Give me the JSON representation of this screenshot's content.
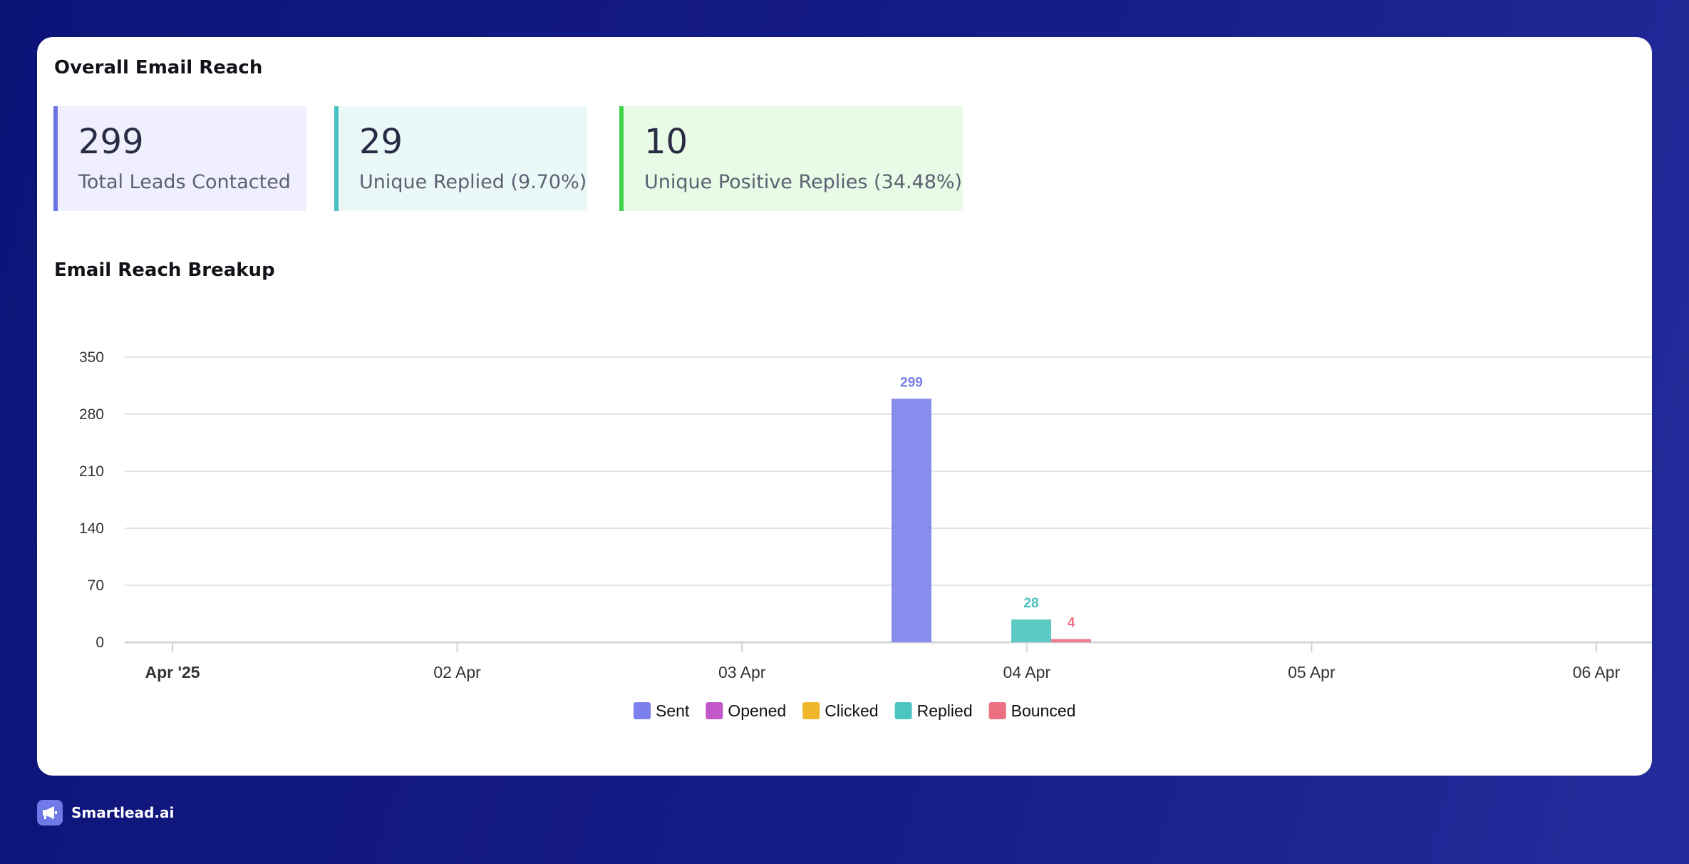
{
  "overall_title": "Overall Email Reach",
  "stats": [
    {
      "value": "299",
      "label": "Total Leads Contacted",
      "accent": "#6b74e0",
      "bg": "#efeffd"
    },
    {
      "value": "29",
      "label": "Unique Replied (9.70%)",
      "accent": "#49c0c4",
      "bg": "#ebf8f8"
    },
    {
      "value": "10",
      "label": "Unique Positive Replies (34.48%)",
      "accent": "#3ed24a",
      "bg": "#e8fbe6"
    }
  ],
  "breakup_title": "Email Reach Breakup",
  "brand": {
    "name": "Smartlead.ai",
    "logo_icon": "megaphone-icon"
  },
  "chart_data": {
    "type": "bar",
    "categories": [
      "Apr '25",
      "02 Apr",
      "03 Apr",
      "04 Apr",
      "05 Apr",
      "06 Apr"
    ],
    "y_ticks": [
      "0",
      "70",
      "140",
      "210",
      "280",
      "350"
    ],
    "ylim": [
      0,
      350
    ],
    "grid": true,
    "legend_position": "bottom-center",
    "series": [
      {
        "name": "Sent",
        "color": "#7b80ea",
        "values": [
          0,
          0,
          299,
          0,
          0,
          0
        ]
      },
      {
        "name": "Opened",
        "color": "#c257c9",
        "values": [
          0,
          0,
          0,
          0,
          0,
          0
        ]
      },
      {
        "name": "Clicked",
        "color": "#f0b62a",
        "values": [
          0,
          0,
          0,
          0,
          0,
          0
        ]
      },
      {
        "name": "Replied",
        "color": "#4cc4c0",
        "values": [
          0,
          0,
          28,
          0,
          0,
          1
        ]
      },
      {
        "name": "Bounced",
        "color": "#ec6f82",
        "values": [
          0,
          0,
          4,
          0,
          0,
          0
        ]
      }
    ],
    "data_labels": [
      {
        "series": "Sent",
        "category": "03 Apr",
        "text": "299"
      },
      {
        "series": "Replied",
        "category": "03 Apr",
        "text": "28"
      },
      {
        "series": "Bounced",
        "category": "03 Apr",
        "text": "4"
      }
    ]
  }
}
